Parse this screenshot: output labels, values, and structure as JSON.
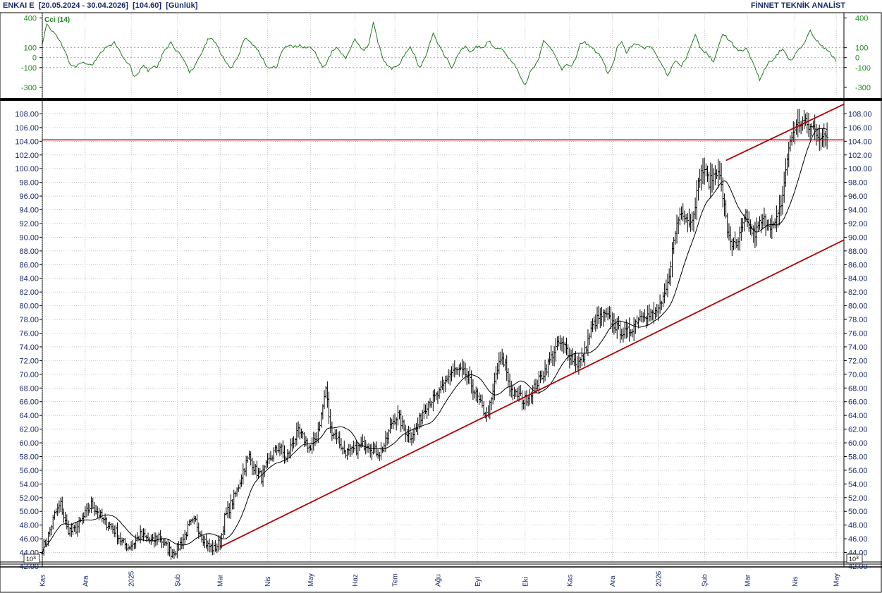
{
  "header": {
    "symbol": "ENKAI E",
    "range": "[20.05.2024 - 30.04.2026]",
    "last": "[104.60]",
    "period": "[Günlük]",
    "brand": "FİNNET TEKNİK ANALİST"
  },
  "colors": {
    "price_bars": "#000000",
    "moving_average": "#000000",
    "trend_lines": "#b00000",
    "horizontal_level": "#d40000",
    "cci_line": "#1e7a1e",
    "cci_label": "#1e8a1e",
    "axis_text": "#1a2a6b",
    "grid": "#a0a0a0"
  },
  "chart_data": [
    {
      "type": "line",
      "name": "Cci (14)",
      "label": "Cci (14)",
      "ylim": [
        -400,
        460
      ],
      "yticks": [
        400,
        100,
        0,
        -100,
        -300
      ],
      "reference_lines": [
        100,
        0,
        -100
      ],
      "grid": true,
      "points": [
        [
          0,
          150
        ],
        [
          3,
          340
        ],
        [
          6,
          280
        ],
        [
          10,
          200
        ],
        [
          14,
          100
        ],
        [
          18,
          -60
        ],
        [
          22,
          -100
        ],
        [
          26,
          -40
        ],
        [
          30,
          -80
        ],
        [
          33,
          -60
        ],
        [
          37,
          20
        ],
        [
          40,
          80
        ],
        [
          44,
          120
        ],
        [
          47,
          150
        ],
        [
          50,
          80
        ],
        [
          53,
          0
        ],
        [
          57,
          -80
        ],
        [
          60,
          -200
        ],
        [
          63,
          -150
        ],
        [
          66,
          -70
        ],
        [
          69,
          -130
        ],
        [
          72,
          -90
        ],
        [
          75,
          -100
        ],
        [
          78,
          20
        ],
        [
          81,
          100
        ],
        [
          84,
          150
        ],
        [
          87,
          60
        ],
        [
          90,
          40
        ],
        [
          93,
          -40
        ],
        [
          96,
          -150
        ],
        [
          99,
          -100
        ],
        [
          102,
          0
        ],
        [
          105,
          80
        ],
        [
          108,
          190
        ],
        [
          111,
          180
        ],
        [
          114,
          120
        ],
        [
          117,
          30
        ],
        [
          120,
          -40
        ],
        [
          123,
          -100
        ],
        [
          126,
          -40
        ],
        [
          129,
          60
        ],
        [
          132,
          200
        ],
        [
          135,
          170
        ],
        [
          138,
          120
        ],
        [
          141,
          60
        ],
        [
          144,
          -20
        ],
        [
          147,
          -100
        ],
        [
          150,
          -100
        ],
        [
          153,
          -90
        ],
        [
          156,
          60
        ],
        [
          159,
          110
        ],
        [
          162,
          130
        ],
        [
          165,
          110
        ],
        [
          168,
          120
        ],
        [
          171,
          100
        ],
        [
          174,
          120
        ],
        [
          177,
          80
        ],
        [
          180,
          -10
        ],
        [
          183,
          -110
        ],
        [
          186,
          -40
        ],
        [
          189,
          60
        ],
        [
          192,
          100
        ],
        [
          195,
          40
        ],
        [
          198,
          -10
        ],
        [
          201,
          80
        ],
        [
          204,
          180
        ],
        [
          207,
          120
        ],
        [
          210,
          70
        ],
        [
          213,
          130
        ],
        [
          216,
          350
        ],
        [
          219,
          160
        ],
        [
          222,
          0
        ],
        [
          225,
          -80
        ],
        [
          228,
          -110
        ],
        [
          231,
          -100
        ],
        [
          234,
          -40
        ],
        [
          237,
          50
        ],
        [
          240,
          100
        ],
        [
          243,
          20
        ],
        [
          246,
          -110
        ],
        [
          249,
          -20
        ],
        [
          252,
          100
        ],
        [
          255,
          250
        ],
        [
          258,
          140
        ],
        [
          261,
          60
        ],
        [
          264,
          -10
        ],
        [
          267,
          -100
        ],
        [
          270,
          -20
        ],
        [
          273,
          80
        ],
        [
          276,
          110
        ],
        [
          279,
          60
        ],
        [
          282,
          100
        ],
        [
          285,
          110
        ],
        [
          288,
          100
        ],
        [
          291,
          170
        ],
        [
          294,
          120
        ],
        [
          297,
          90
        ],
        [
          300,
          80
        ],
        [
          303,
          20
        ],
        [
          306,
          -30
        ],
        [
          309,
          -90
        ],
        [
          312,
          -200
        ],
        [
          315,
          -280
        ],
        [
          318,
          -150
        ],
        [
          321,
          -100
        ],
        [
          324,
          0
        ],
        [
          327,
          170
        ],
        [
          330,
          130
        ],
        [
          333,
          70
        ],
        [
          336,
          -20
        ],
        [
          339,
          -120
        ],
        [
          342,
          -70
        ],
        [
          345,
          -100
        ],
        [
          348,
          -10
        ],
        [
          351,
          140
        ],
        [
          354,
          150
        ],
        [
          357,
          120
        ],
        [
          360,
          80
        ],
        [
          363,
          40
        ],
        [
          366,
          -40
        ],
        [
          369,
          -170
        ],
        [
          372,
          -80
        ],
        [
          375,
          100
        ],
        [
          378,
          160
        ],
        [
          381,
          40
        ],
        [
          384,
          120
        ],
        [
          387,
          150
        ],
        [
          390,
          110
        ],
        [
          393,
          100
        ],
        [
          396,
          120
        ],
        [
          399,
          80
        ],
        [
          402,
          -20
        ],
        [
          405,
          -90
        ],
        [
          408,
          -190
        ],
        [
          411,
          -70
        ],
        [
          414,
          -30
        ],
        [
          417,
          -80
        ],
        [
          420,
          0
        ],
        [
          423,
          110
        ],
        [
          426,
          240
        ],
        [
          429,
          100
        ],
        [
          432,
          60
        ],
        [
          435,
          20
        ],
        [
          438,
          -40
        ],
        [
          441,
          100
        ],
        [
          444,
          250
        ],
        [
          447,
          190
        ],
        [
          450,
          150
        ],
        [
          453,
          80
        ],
        [
          456,
          60
        ],
        [
          459,
          100
        ],
        [
          462,
          0
        ],
        [
          465,
          -100
        ],
        [
          468,
          -220
        ],
        [
          471,
          -120
        ],
        [
          474,
          -40
        ],
        [
          477,
          -20
        ],
        [
          480,
          40
        ],
        [
          483,
          100
        ],
        [
          486,
          0
        ],
        [
          489,
          -30
        ],
        [
          492,
          50
        ],
        [
          495,
          110
        ],
        [
          498,
          170
        ],
        [
          501,
          280
        ],
        [
          504,
          190
        ],
        [
          507,
          150
        ],
        [
          510,
          100
        ],
        [
          513,
          60
        ],
        [
          516,
          10
        ],
        [
          518,
          -40
        ]
      ]
    },
    {
      "type": "line",
      "ylim": [
        42,
        110
      ],
      "yticks": [
        44,
        46,
        48,
        50,
        52,
        54,
        56,
        58,
        60,
        62,
        64,
        66,
        68,
        70,
        72,
        74,
        76,
        78,
        80,
        82,
        84,
        86,
        88,
        90,
        92,
        94,
        96,
        98,
        100,
        102,
        104,
        106,
        108
      ],
      "ytick_labels": [
        "44.00",
        "46.00",
        "48.00",
        "50.00",
        "52.00",
        "54.00",
        "56.00",
        "58.00",
        "60.00",
        "62.00",
        "64.00",
        "66.00",
        "68.00",
        "70.00",
        "72.00",
        "74.00",
        "76.00",
        "78.00",
        "80.00",
        "82.00",
        "84.00",
        "86.00",
        "88.00",
        "90.00",
        "92.00",
        "94.00",
        "96.00",
        "98.00",
        "100.00",
        "102.00",
        "104.00",
        "106.00",
        "108.00"
      ],
      "bottom_label": "42.00",
      "scale_badge": "10^3",
      "x_labels": [
        "Kas",
        "Ara",
        "2025",
        "Şub",
        "Mar",
        "Nis",
        "May",
        "Haz",
        "Tem",
        "Ağu",
        "Eyl",
        "Eki",
        "Kas",
        "Ara",
        "2026",
        "Şub",
        "Mar",
        "Nis",
        "May"
      ],
      "x_label_days": [
        0,
        28,
        58,
        88,
        116,
        147,
        175,
        204,
        230,
        258,
        284,
        315,
        344,
        372,
        402,
        432,
        460,
        491,
        518
      ],
      "grid": true,
      "price_anchors": [
        [
          0,
          44.5
        ],
        [
          4,
          46.5
        ],
        [
          8,
          49.5
        ],
        [
          12,
          51
        ],
        [
          16,
          47.5
        ],
        [
          20,
          47
        ],
        [
          24,
          48
        ],
        [
          28,
          49.5
        ],
        [
          32,
          51
        ],
        [
          36,
          50
        ],
        [
          40,
          48.5
        ],
        [
          44,
          48
        ],
        [
          48,
          47
        ],
        [
          52,
          45.5
        ],
        [
          56,
          44.8
        ],
        [
          60,
          45.5
        ],
        [
          64,
          46.5
        ],
        [
          68,
          46
        ],
        [
          72,
          45.5
        ],
        [
          76,
          46.5
        ],
        [
          80,
          45
        ],
        [
          84,
          44
        ],
        [
          88,
          44.5
        ],
        [
          92,
          46
        ],
        [
          96,
          48
        ],
        [
          100,
          48.5
        ],
        [
          104,
          46.5
        ],
        [
          108,
          45
        ],
        [
          112,
          44.5
        ],
        [
          116,
          45.5
        ],
        [
          119,
          49
        ],
        [
          123,
          51
        ],
        [
          127,
          53
        ],
        [
          131,
          56
        ],
        [
          135,
          58
        ],
        [
          139,
          56
        ],
        [
          143,
          55
        ],
        [
          147,
          57
        ],
        [
          151,
          58.5
        ],
        [
          155,
          59.5
        ],
        [
          159,
          57.5
        ],
        [
          163,
          60
        ],
        [
          167,
          61.5
        ],
        [
          171,
          60.5
        ],
        [
          175,
          59
        ],
        [
          179,
          61
        ],
        [
          182,
          64
        ],
        [
          185,
          68
        ],
        [
          188,
          62
        ],
        [
          192,
          61
        ],
        [
          196,
          59
        ],
        [
          200,
          58.5
        ],
        [
          204,
          59
        ],
        [
          208,
          59.5
        ],
        [
          212,
          60
        ],
        [
          216,
          59
        ],
        [
          220,
          58.5
        ],
        [
          224,
          60
        ],
        [
          228,
          63
        ],
        [
          232,
          64
        ],
        [
          236,
          62
        ],
        [
          240,
          61
        ],
        [
          244,
          62
        ],
        [
          248,
          64.5
        ],
        [
          252,
          66
        ],
        [
          256,
          66.5
        ],
        [
          260,
          67.5
        ],
        [
          264,
          69.5
        ],
        [
          268,
          70.5
        ],
        [
          272,
          70.5
        ],
        [
          276,
          70
        ],
        [
          280,
          68.5
        ],
        [
          284,
          66.5
        ],
        [
          287,
          65
        ],
        [
          290,
          64
        ],
        [
          293,
          66
        ],
        [
          296,
          70
        ],
        [
          299,
          72
        ],
        [
          302,
          71.5
        ],
        [
          305,
          68
        ],
        [
          308,
          67
        ],
        [
          311,
          67
        ],
        [
          314,
          66
        ],
        [
          317,
          67
        ],
        [
          321,
          68
        ],
        [
          325,
          69.5
        ],
        [
          329,
          71
        ],
        [
          333,
          73
        ],
        [
          337,
          74.5
        ],
        [
          341,
          74
        ],
        [
          345,
          72.5
        ],
        [
          349,
          71.5
        ],
        [
          353,
          72.5
        ],
        [
          356,
          75
        ],
        [
          359,
          77
        ],
        [
          362,
          78
        ],
        [
          365,
          78.5
        ],
        [
          368,
          78.5
        ],
        [
          372,
          77.5
        ],
        [
          376,
          76.5
        ],
        [
          380,
          76
        ],
        [
          384,
          76.5
        ],
        [
          388,
          78
        ],
        [
          392,
          79
        ],
        [
          396,
          78.5
        ],
        [
          400,
          79
        ],
        [
          404,
          80
        ],
        [
          408,
          83
        ],
        [
          411,
          88
        ],
        [
          414,
          92
        ],
        [
          417,
          94
        ],
        [
          420,
          93
        ],
        [
          423,
          92
        ],
        [
          426,
          95
        ],
        [
          429,
          99
        ],
        [
          432,
          100
        ],
        [
          435,
          98
        ],
        [
          438,
          99
        ],
        [
          441,
          100
        ],
        [
          444,
          96
        ],
        [
          447,
          91
        ],
        [
          450,
          89
        ],
        [
          453,
          88.5
        ],
        [
          456,
          91
        ],
        [
          459,
          93
        ],
        [
          462,
          91
        ],
        [
          465,
          90.5
        ],
        [
          468,
          92
        ],
        [
          471,
          92.5
        ],
        [
          474,
          92
        ],
        [
          477,
          91.5
        ],
        [
          480,
          93
        ],
        [
          483,
          96
        ],
        [
          485,
          100
        ],
        [
          488,
          104
        ],
        [
          491,
          106
        ],
        [
          494,
          106.5
        ],
        [
          497,
          107
        ],
        [
          500,
          106
        ],
        [
          503,
          106
        ],
        [
          506,
          105
        ],
        [
          509,
          104.5
        ],
        [
          512,
          104.6
        ]
      ],
      "trend_lines": [
        {
          "from": [
            116,
            44.8
          ],
          "to": [
            523,
            89.6
          ]
        },
        {
          "from": [
            446,
            101.2
          ],
          "to": [
            523,
            109.4
          ]
        }
      ],
      "horizontal_line": 104.2
    }
  ]
}
